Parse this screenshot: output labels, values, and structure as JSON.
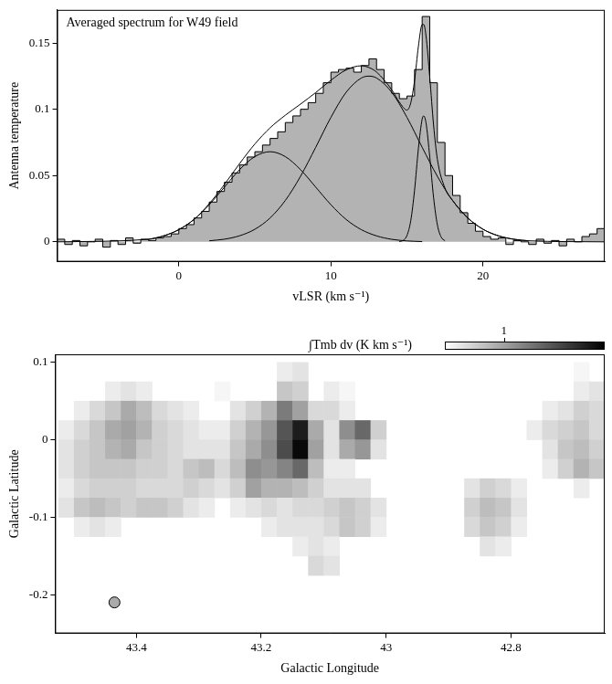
{
  "chart_data": [
    {
      "type": "histogram",
      "title": "Averaged spectrum for W49 field",
      "x_label": "vLSR (km s⁻¹)",
      "y_label": "Antenna temperature",
      "xlim": [
        -8,
        28
      ],
      "xticks": [
        0,
        10,
        20
      ],
      "ylim": [
        -0.015,
        0.175
      ],
      "yticks": [
        0,
        0.05,
        0.1,
        0.15
      ],
      "grid": false,
      "series": [
        {
          "type": "histogram",
          "color": "#b3b3b3",
          "bins": [
            -8,
            -7.5,
            -7,
            -6.5,
            -6,
            -5.5,
            -5,
            -4.5,
            -4,
            -3.5,
            -3,
            -2.5,
            -2,
            -1.5,
            -1,
            -0.5,
            0,
            0.5,
            1,
            1.5,
            2,
            2.5,
            3,
            3.5,
            4,
            4.5,
            5,
            5.5,
            6,
            6.5,
            7,
            7.5,
            8,
            8.5,
            9,
            9.5,
            10,
            10.5,
            11,
            11.5,
            12,
            12.5,
            13,
            13.5,
            14,
            14.5,
            15,
            15.5,
            16,
            16.5,
            17,
            17.5,
            18,
            18.5,
            19,
            19.5,
            20,
            20.5,
            21,
            21.5,
            22,
            22.5,
            23,
            23.5,
            24,
            24.5,
            25,
            25.5,
            26,
            26.5,
            27,
            27.5,
            28
          ],
          "values": [
            0.002,
            -0.002,
            0.001,
            -0.003,
            0,
            0.002,
            -0.004,
            0.001,
            -0.002,
            0.003,
            -0.001,
            0.002,
            0.001,
            0.003,
            0.004,
            0.006,
            0.01,
            0.013,
            0.018,
            0.023,
            0.03,
            0.038,
            0.045,
            0.052,
            0.058,
            0.064,
            0.068,
            0.073,
            0.078,
            0.083,
            0.09,
            0.095,
            0.1,
            0.105,
            0.112,
            0.12,
            0.128,
            0.13,
            0.131,
            0.128,
            0.133,
            0.138,
            0.13,
            0.12,
            0.112,
            0.108,
            0.11,
            0.13,
            0.17,
            0.12,
            0.075,
            0.05,
            0.035,
            0.022,
            0.014,
            0.008,
            0.004,
            0.002,
            0.003,
            -0.002,
            0.001,
            0,
            -0.002,
            0.002,
            -0.001,
            0.001,
            -0.003,
            0.002,
            0,
            0.004,
            0.006,
            0.01
          ]
        },
        {
          "type": "line",
          "color": "#000000",
          "x": [
            -2,
            -1,
            0,
            1,
            2,
            3,
            4,
            5,
            6,
            7,
            8,
            9,
            10,
            11,
            12,
            13,
            14,
            15,
            16
          ],
          "values": [
            0.0019,
            0.0045,
            0.0092,
            0.0169,
            0.028,
            0.0413,
            0.0545,
            0.0643,
            0.068,
            0.0643,
            0.0545,
            0.0413,
            0.028,
            0.0169,
            0.0092,
            0.0045,
            0.0019,
            0.0007,
            0.0002
          ]
        },
        {
          "type": "line",
          "color": "#000000",
          "x": [
            2,
            3,
            4,
            5,
            6,
            7,
            8,
            9,
            10,
            11,
            12,
            12.5,
            13,
            14,
            15,
            16,
            17,
            18,
            19,
            20,
            21,
            22,
            23
          ],
          "values": [
            0.0008,
            0.002,
            0.0046,
            0.0095,
            0.018,
            0.0312,
            0.0494,
            0.0713,
            0.0939,
            0.1128,
            0.1236,
            0.125,
            0.1236,
            0.1128,
            0.0939,
            0.0713,
            0.0494,
            0.0312,
            0.018,
            0.0095,
            0.0046,
            0.002,
            0.0008
          ]
        },
        {
          "type": "line",
          "color": "#000000",
          "x": [
            14.5,
            14.75,
            15,
            15.25,
            15.5,
            15.75,
            16,
            16.1,
            16.25,
            16.5,
            16.75,
            17,
            17.25,
            17.5
          ],
          "values": [
            0.0002,
            0.0011,
            0.0048,
            0.016,
            0.039,
            0.0702,
            0.0926,
            0.095,
            0.0899,
            0.064,
            0.0335,
            0.0128,
            0.0036,
            0.0008
          ]
        },
        {
          "type": "line",
          "color": "#000000",
          "x": [
            -8,
            -2,
            -1,
            0,
            1,
            2,
            3,
            4,
            5,
            6,
            7,
            8,
            9,
            10,
            11,
            12,
            12.5,
            13,
            14,
            14.5,
            15,
            15.25,
            15.5,
            15.75,
            16,
            16.1,
            16.25,
            16.5,
            16.75,
            17,
            17.5,
            18,
            19,
            20,
            21,
            22,
            23,
            28
          ],
          "values": [
            0,
            0.0019,
            0.0045,
            0.0092,
            0.0169,
            0.0288,
            0.0433,
            0.0591,
            0.0738,
            0.086,
            0.0955,
            0.1039,
            0.1126,
            0.1219,
            0.1297,
            0.1328,
            0.1315,
            0.1281,
            0.1147,
            0.1054,
            0.0994,
            0.1048,
            0.1217,
            0.1472,
            0.1639,
            0.164,
            0.1555,
            0.124,
            0.0881,
            0.0622,
            0.0405,
            0.0312,
            0.018,
            0.0095,
            0.0046,
            0.002,
            0.0008,
            0
          ]
        }
      ]
    },
    {
      "type": "heatmap",
      "x_label": "Galactic Longitude",
      "y_label": "Galactic Latitude",
      "xlim": [
        43.53,
        42.65
      ],
      "xticks": [
        43.4,
        43.2,
        43,
        42.8
      ],
      "ylim": [
        -0.25,
        0.11
      ],
      "yticks": [
        -0.2,
        -0.1,
        0,
        0.1
      ],
      "grid": false,
      "colorbar": {
        "label": "∫Tmb dv (K km s⁻¹)",
        "range": [
          0,
          2.7
        ],
        "ticks": [
          1
        ]
      },
      "beam": {
        "x": 43.435,
        "y": -0.21,
        "color": "#aaaaaa"
      },
      "lon": [
        43.5125,
        43.4875,
        43.4625,
        43.4375,
        43.4125,
        43.3875,
        43.3625,
        43.3375,
        43.3125,
        43.2875,
        43.2625,
        43.2375,
        43.2125,
        43.1875,
        43.1625,
        43.1375,
        43.1125,
        43.0875,
        43.0625,
        43.0375,
        43.0125,
        42.9875,
        42.9625,
        42.9375,
        42.9125,
        42.8875,
        42.8625,
        42.8375,
        42.8125,
        42.7875,
        42.7625,
        42.7375,
        42.7125,
        42.6875,
        42.6625
      ],
      "lat": [
        0.0875,
        0.0625,
        0.0375,
        0.0125,
        -0.0125,
        -0.0375,
        -0.0625,
        -0.0875,
        -0.1125,
        -0.1375,
        -0.1625,
        -0.1875,
        -0.2125,
        -0.2375
      ],
      "z": [
        [
          0,
          0,
          0,
          0,
          0,
          0,
          0,
          0,
          0,
          0,
          0,
          0,
          0,
          0,
          0.2,
          0.3,
          0,
          0,
          0,
          0,
          0,
          0,
          0,
          0,
          0,
          0,
          0,
          0,
          0,
          0,
          0,
          0,
          0,
          0.1,
          0
        ],
        [
          0,
          0,
          0,
          0.2,
          0.3,
          0.2,
          0,
          0,
          0,
          0,
          0.1,
          0,
          0,
          0,
          0.6,
          0.5,
          0,
          0.2,
          0.1,
          0,
          0,
          0,
          0,
          0,
          0,
          0,
          0,
          0,
          0,
          0,
          0,
          0,
          0,
          0.2,
          0.3
        ],
        [
          0,
          0.2,
          0.4,
          0.6,
          0.9,
          0.7,
          0.4,
          0.3,
          0.2,
          0,
          0,
          0.3,
          0.5,
          0.8,
          1.4,
          1.0,
          0.4,
          0.4,
          0.2,
          0,
          0,
          0,
          0,
          0,
          0,
          0,
          0,
          0,
          0,
          0,
          0,
          0.2,
          0.3,
          0.5,
          0.4
        ],
        [
          0.2,
          0.4,
          0.6,
          0.9,
          1.0,
          0.8,
          0.5,
          0.4,
          0.3,
          0.2,
          0.2,
          0.5,
          0.8,
          1.1,
          1.8,
          2.4,
          0.9,
          0.3,
          1.2,
          1.6,
          0.5,
          0,
          0,
          0,
          0,
          0,
          0,
          0,
          0,
          0,
          0.2,
          0.4,
          0.5,
          0.6,
          0.4
        ],
        [
          0.3,
          0.5,
          0.6,
          0.8,
          0.9,
          0.6,
          0.5,
          0.4,
          0.3,
          0.3,
          0.3,
          0.6,
          0.9,
          1.2,
          1.9,
          2.6,
          1.0,
          0.3,
          0.9,
          1.1,
          0.3,
          0,
          0,
          0,
          0,
          0,
          0,
          0,
          0,
          0,
          0,
          0.3,
          0.6,
          0.7,
          0.5
        ],
        [
          0.3,
          0.5,
          0.6,
          0.6,
          0.6,
          0.5,
          0.5,
          0.4,
          0.6,
          0.7,
          0.4,
          0.7,
          1.2,
          1.1,
          1.3,
          1.6,
          0.7,
          0.2,
          0.2,
          0,
          0,
          0,
          0,
          0,
          0,
          0,
          0,
          0,
          0,
          0,
          0,
          0.2,
          0.5,
          0.8,
          0.6
        ],
        [
          0.2,
          0.4,
          0.5,
          0.5,
          0.5,
          0.4,
          0.4,
          0.4,
          0.5,
          0.4,
          0.3,
          0.5,
          1.0,
          0.8,
          0.8,
          0.7,
          0.5,
          0.3,
          0.3,
          0.3,
          0,
          0,
          0,
          0,
          0,
          0,
          0.3,
          0.5,
          0.4,
          0.2,
          0,
          0,
          0,
          0.2,
          0
        ],
        [
          0.3,
          0.6,
          0.7,
          0.6,
          0.5,
          0.6,
          0.6,
          0.5,
          0.3,
          0.2,
          0,
          0.2,
          0.3,
          0.4,
          0.3,
          0.4,
          0.4,
          0.5,
          0.6,
          0.5,
          0.3,
          0,
          0,
          0,
          0,
          0,
          0.5,
          0.7,
          0.6,
          0.3,
          0,
          0,
          0,
          0,
          0
        ],
        [
          0,
          0.2,
          0.3,
          0.2,
          0,
          0,
          0,
          0,
          0,
          0,
          0,
          0,
          0,
          0.2,
          0.3,
          0.3,
          0.3,
          0.4,
          0.6,
          0.5,
          0.2,
          0,
          0,
          0,
          0,
          0,
          0.4,
          0.6,
          0.5,
          0.2,
          0,
          0,
          0,
          0,
          0
        ],
        [
          0,
          0,
          0,
          0,
          0,
          0,
          0,
          0,
          0,
          0,
          0,
          0,
          0,
          0,
          0,
          0.2,
          0.3,
          0.2,
          0,
          0,
          0,
          0,
          0,
          0,
          0,
          0,
          0,
          0.3,
          0.2,
          0,
          0,
          0,
          0,
          0,
          0
        ],
        [
          0,
          0,
          0,
          0,
          0,
          0,
          0,
          0,
          0,
          0,
          0,
          0,
          0,
          0,
          0,
          0,
          0.4,
          0.3,
          0,
          0,
          0,
          0,
          0,
          0,
          0,
          0,
          0,
          0,
          0,
          0,
          0,
          0,
          0,
          0,
          0
        ],
        [
          0,
          0,
          0,
          0,
          0,
          0,
          0,
          0,
          0,
          0,
          0,
          0,
          0,
          0,
          0,
          0,
          0,
          0,
          0,
          0,
          0,
          0,
          0,
          0,
          0,
          0,
          0,
          0,
          0,
          0,
          0,
          0,
          0,
          0,
          0
        ],
        [
          0,
          0,
          0,
          0,
          0,
          0,
          0,
          0,
          0,
          0,
          0,
          0,
          0,
          0,
          0,
          0,
          0,
          0,
          0,
          0,
          0,
          0,
          0,
          0,
          0,
          0,
          0,
          0,
          0,
          0,
          0,
          0,
          0,
          0,
          0
        ],
        [
          0,
          0,
          0,
          0,
          0,
          0,
          0,
          0,
          0,
          0,
          0,
          0,
          0,
          0,
          0,
          0,
          0,
          0,
          0,
          0,
          0,
          0,
          0,
          0,
          0,
          0,
          0,
          0,
          0,
          0,
          0,
          0,
          0,
          0,
          0
        ]
      ]
    }
  ]
}
